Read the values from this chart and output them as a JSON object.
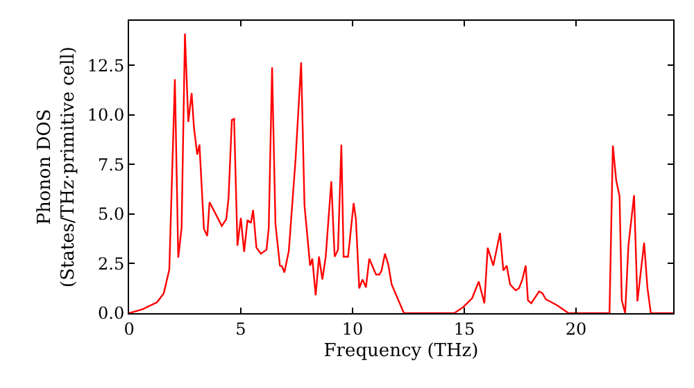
{
  "chart_data": {
    "type": "line",
    "xlabel": "Frequency (THz)",
    "ylabel": "Phonon DOS\n(States/THz·primitive cell)",
    "xlim": [
      0,
      24.35
    ],
    "ylim": [
      0,
      14.75
    ],
    "xticks": [
      0,
      5,
      10,
      15,
      20
    ],
    "yticks": [
      {
        "value": 0,
        "label": "0.0"
      },
      {
        "value": 2.5,
        "label": "2.5"
      },
      {
        "value": 5,
        "label": "5.0"
      },
      {
        "value": 7.5,
        "label": "7.5"
      },
      {
        "value": 10,
        "label": "10.0"
      },
      {
        "value": 12.5,
        "label": "12.5"
      }
    ],
    "marker": "none",
    "line_style": "solid",
    "x": [
      0,
      0.6,
      1.25,
      1.55,
      1.8,
      2.05,
      2.2,
      2.35,
      2.5,
      2.65,
      2.8,
      2.9,
      3.05,
      3.15,
      3.35,
      3.5,
      3.6,
      4.15,
      4.35,
      4.45,
      4.6,
      4.7,
      4.85,
      5.0,
      5.15,
      5.3,
      5.45,
      5.55,
      5.7,
      5.9,
      6.15,
      6.25,
      6.4,
      6.55,
      6.75,
      6.85,
      6.95,
      7.15,
      7.45,
      7.7,
      7.85,
      8.1,
      8.2,
      8.35,
      8.5,
      8.65,
      8.8,
      9.05,
      9.2,
      9.35,
      9.5,
      9.6,
      9.8,
      10.05,
      10.15,
      10.3,
      10.45,
      10.6,
      10.75,
      11.05,
      11.2,
      11.3,
      11.45,
      11.6,
      11.75,
      12.3,
      14.55,
      14.95,
      15.35,
      15.65,
      15.9,
      16.05,
      16.3,
      16.6,
      16.75,
      16.9,
      17.05,
      17.3,
      17.45,
      17.6,
      17.75,
      17.85,
      18.0,
      18.35,
      18.5,
      18.65,
      19.15,
      19.6,
      19.65,
      21.5,
      21.65,
      21.8,
      21.95,
      22.05,
      22.2,
      22.35,
      22.6,
      22.75,
      23.05,
      23.2,
      23.35,
      24.35
    ],
    "series": [
      {
        "color": "#ff0000",
        "values": [
          0,
          0.2,
          0.55,
          1.0,
          2.2,
          11.8,
          2.8,
          4.3,
          14.1,
          9.65,
          11.1,
          9.4,
          8.0,
          8.5,
          4.25,
          3.9,
          5.6,
          4.4,
          4.75,
          5.8,
          9.75,
          9.8,
          3.4,
          4.8,
          3.1,
          4.7,
          4.55,
          5.2,
          3.3,
          3.0,
          3.2,
          4.3,
          12.4,
          4.5,
          2.4,
          2.35,
          2.05,
          3.15,
          7.75,
          12.65,
          5.45,
          2.4,
          2.75,
          0.9,
          2.85,
          1.7,
          2.85,
          6.65,
          2.85,
          3.2,
          8.5,
          2.85,
          2.85,
          5.55,
          4.75,
          1.25,
          1.7,
          1.3,
          2.75,
          1.95,
          1.95,
          2.15,
          3.0,
          2.45,
          1.45,
          0,
          0,
          0.3,
          0.75,
          1.6,
          0.5,
          3.3,
          2.4,
          4.05,
          2.15,
          2.4,
          1.45,
          1.15,
          1.25,
          1.7,
          2.4,
          0.65,
          0.5,
          1.1,
          1.0,
          0.7,
          0.4,
          0.05,
          0,
          0,
          8.45,
          6.7,
          5.9,
          0.65,
          0,
          3.45,
          5.95,
          0.6,
          3.55,
          1.25,
          0,
          0
        ]
      }
    ]
  }
}
